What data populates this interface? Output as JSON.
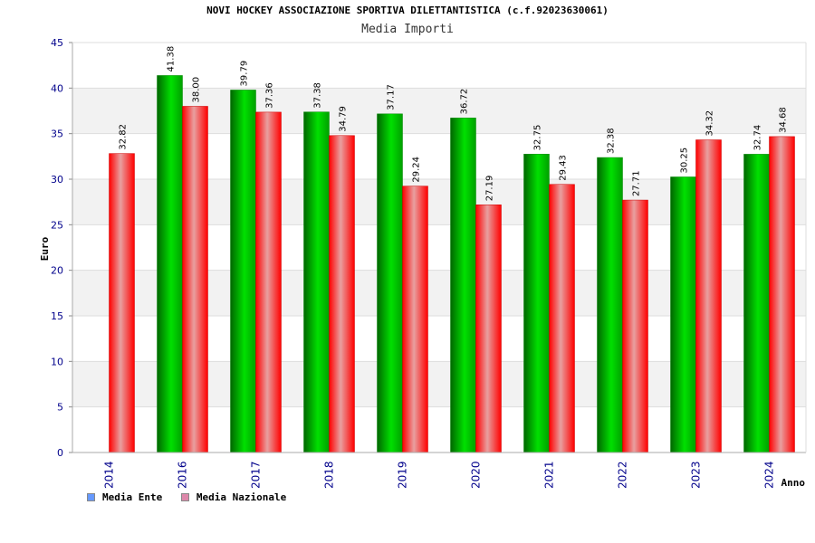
{
  "chart_data": {
    "type": "bar",
    "title": "NOVI HOCKEY ASSOCIAZIONE SPORTIVA DILETTANTISTICA (c.f.92023630061)",
    "subtitle": "Media Importi",
    "xlabel": "Anno",
    "ylabel": "Euro",
    "ylim": [
      0,
      45
    ],
    "yticks": [
      0,
      5,
      10,
      15,
      20,
      25,
      30,
      35,
      40,
      45
    ],
    "categories": [
      "2014",
      "2016",
      "2017",
      "2018",
      "2019",
      "2020",
      "2021",
      "2022",
      "2023",
      "2024"
    ],
    "series": [
      {
        "name": "Media Ente",
        "color": "#00cc00",
        "legend_color": "#6699ff",
        "values": [
          null,
          41.38,
          39.79,
          37.38,
          37.17,
          36.72,
          32.75,
          32.38,
          30.25,
          32.74
        ],
        "labels": [
          null,
          "41.38",
          "39.79",
          "37.38",
          "37.17",
          "36.72",
          "32.75",
          "32.38",
          "30.25",
          "32.74"
        ]
      },
      {
        "name": "Media Nazionale",
        "color": "#ff0000",
        "legend_color": "#dd88aa",
        "values": [
          32.82,
          38.0,
          37.36,
          34.79,
          29.24,
          27.19,
          29.43,
          27.71,
          34.32,
          34.68
        ],
        "labels": [
          "32.82",
          "38.00",
          "37.36",
          "34.79",
          "29.24",
          "27.19",
          "29.43",
          "27.71",
          "34.32",
          "34.68"
        ]
      }
    ],
    "grid": true,
    "legend_position": "bottom-left"
  }
}
